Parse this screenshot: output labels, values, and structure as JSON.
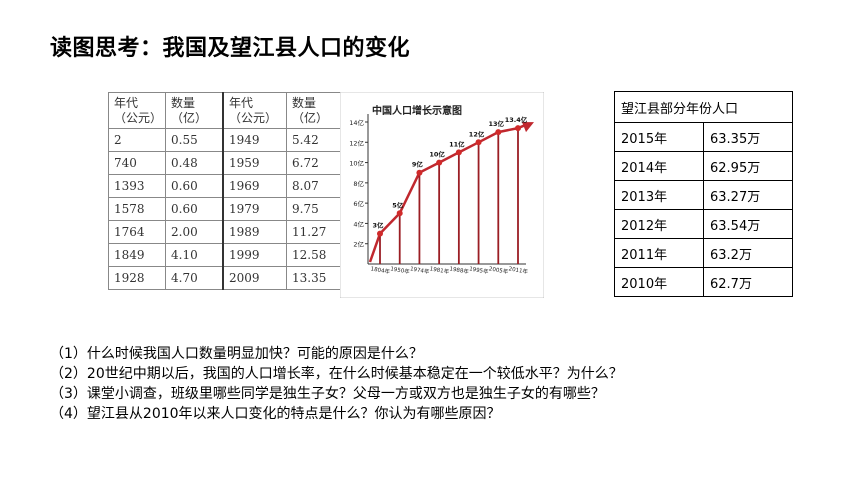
{
  "title": "读图思考：我国及望江县人口的变化",
  "national_table": {
    "headers": [
      "年代\n（公元）",
      "数量\n（亿）",
      "年代\n（公元）",
      "数量\n（亿）"
    ],
    "rows": [
      [
        "2",
        "0.55",
        "1949",
        "5.42"
      ],
      [
        "740",
        "0.48",
        "1959",
        "6.72"
      ],
      [
        "1393",
        "0.60",
        "1969",
        "8.07"
      ],
      [
        "1578",
        "0.60",
        "1979",
        "9.75"
      ],
      [
        "1764",
        "2.00",
        "1989",
        "11.27"
      ],
      [
        "1849",
        "4.10",
        "1999",
        "12.58"
      ],
      [
        "1928",
        "4.70",
        "2009",
        "13.35"
      ]
    ]
  },
  "chart_data": {
    "type": "line",
    "title": "中国人口增长示意图",
    "x": [
      "1804年",
      "1950年",
      "1974年",
      "1981年",
      "1988年",
      "1995年",
      "2005年",
      "2011年"
    ],
    "values": [
      3,
      5,
      9,
      10,
      11,
      12,
      13,
      13.4
    ],
    "point_labels": [
      "3亿",
      "5亿",
      "9亿",
      "10亿",
      "11亿",
      "12亿",
      "13亿",
      "13.4亿"
    ],
    "y_ticks": [
      "2亿",
      "4亿",
      "6亿",
      "8亿",
      "10亿",
      "12亿",
      "14亿"
    ],
    "ylim": [
      0,
      14
    ],
    "colors": {
      "line": "#c0282e",
      "marker": "#d02a2a",
      "label": "#111111"
    }
  },
  "wangjiang_table": {
    "title": "望江县部分年份人口",
    "rows": [
      [
        "2015年",
        "63.35万"
      ],
      [
        "2014年",
        "62.95万"
      ],
      [
        "2013年",
        "63.27万"
      ],
      [
        "2012年",
        "63.54万"
      ],
      [
        "2011年",
        "63.2万"
      ],
      [
        "2010年",
        "62.7万"
      ]
    ]
  },
  "questions": [
    "（1）什么时候我国人口数量明显加快？可能的原因是什么？",
    "（2）20世纪中期以后，我国的人口增长率，在什么时候基本稳定在一个较低水平？为什么？",
    "（3）课堂小调查，班级里哪些同学是独生子女？父母一方或双方也是独生子女的有哪些？",
    "（4）望江县从2010年以来人口变化的特点是什么？你认为有哪些原因？"
  ]
}
